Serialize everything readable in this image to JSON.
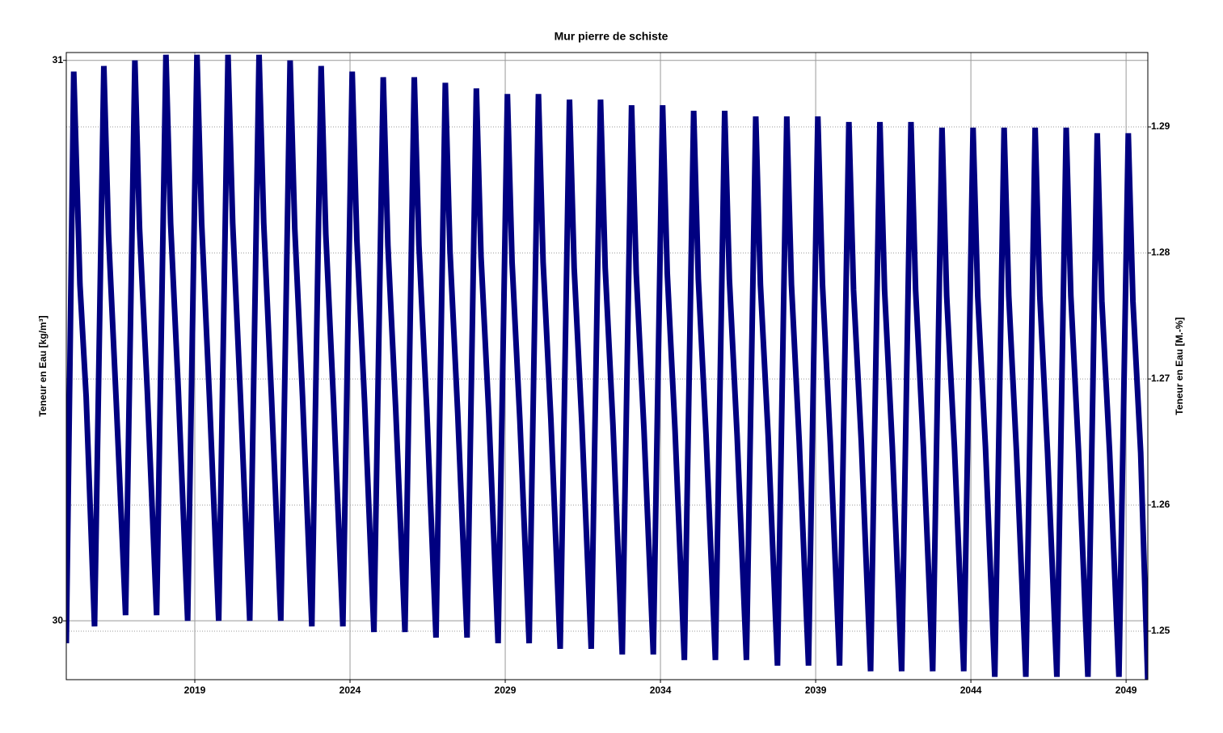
{
  "chart_data": {
    "type": "line",
    "title": "Mur pierre de schiste",
    "y_label": "Teneur en Eau [kg/m³]",
    "y2_label": "Teneur en Eau [M.-%]",
    "color": "#000080",
    "grid": true,
    "xlim": [
      2014.86,
      2049.7
    ],
    "xticks": [
      2019,
      2024,
      2029,
      2034,
      2039,
      2044,
      2049
    ],
    "ylim": [
      29.895,
      31.014
    ],
    "yticks": [
      30,
      31
    ],
    "y2lim": [
      1.24615,
      1.2959
    ],
    "y2ticks": [
      1.25,
      1.26,
      1.27,
      1.28,
      1.29
    ],
    "x": [
      2014.86,
      2015.1,
      2015.3,
      2015.5,
      2015.77,
      2016.07,
      2016.22,
      2016.47,
      2016.77,
      2017.07,
      2017.22,
      2017.47,
      2017.77,
      2018.07,
      2018.22,
      2018.47,
      2018.77,
      2019.07,
      2019.22,
      2019.47,
      2019.77,
      2020.07,
      2020.22,
      2020.47,
      2020.77,
      2021.07,
      2021.22,
      2021.47,
      2021.77,
      2022.07,
      2022.22,
      2022.47,
      2022.77,
      2023.07,
      2023.22,
      2023.47,
      2023.77,
      2024.07,
      2024.22,
      2024.47,
      2024.77,
      2025.07,
      2025.22,
      2025.47,
      2025.77,
      2026.07,
      2026.22,
      2026.47,
      2026.77,
      2027.07,
      2027.22,
      2027.47,
      2027.77,
      2028.07,
      2028.22,
      2028.47,
      2028.77,
      2029.07,
      2029.22,
      2029.47,
      2029.77,
      2030.07,
      2030.22,
      2030.47,
      2030.77,
      2031.07,
      2031.22,
      2031.47,
      2031.77,
      2032.07,
      2032.22,
      2032.47,
      2032.77,
      2033.07,
      2033.22,
      2033.47,
      2033.77,
      2034.07,
      2034.22,
      2034.47,
      2034.77,
      2035.07,
      2035.22,
      2035.47,
      2035.77,
      2036.07,
      2036.22,
      2036.47,
      2036.77,
      2037.07,
      2037.22,
      2037.47,
      2037.77,
      2038.07,
      2038.22,
      2038.47,
      2038.77,
      2039.07,
      2039.22,
      2039.47,
      2039.77,
      2040.07,
      2040.22,
      2040.47,
      2040.77,
      2041.07,
      2041.22,
      2041.47,
      2041.77,
      2042.07,
      2042.22,
      2042.47,
      2042.77,
      2043.07,
      2043.22,
      2043.47,
      2043.77,
      2044.07,
      2044.22,
      2044.47,
      2044.77,
      2045.07,
      2045.22,
      2045.47,
      2045.77,
      2046.07,
      2046.22,
      2046.47,
      2046.77,
      2047.07,
      2047.22,
      2047.47,
      2047.77,
      2048.07,
      2048.22,
      2048.47,
      2048.77,
      2049.07,
      2049.22,
      2049.47,
      2049.7
    ],
    "values": [
      29.96,
      30.98,
      30.6,
      30.4,
      29.99,
      30.99,
      30.69,
      30.39,
      30.01,
      31.0,
      30.7,
      30.41,
      30.01,
      31.01,
      30.71,
      30.41,
      30.0,
      31.01,
      30.71,
      30.4,
      30.0,
      31.01,
      30.71,
      30.4,
      30.0,
      31.01,
      30.71,
      30.4,
      30.0,
      31.0,
      30.7,
      30.4,
      29.99,
      30.99,
      30.69,
      30.39,
      29.99,
      30.98,
      30.68,
      30.39,
      29.98,
      30.97,
      30.67,
      30.38,
      29.98,
      30.97,
      30.67,
      30.38,
      29.97,
      30.96,
      30.66,
      30.37,
      29.97,
      30.95,
      30.65,
      30.37,
      29.96,
      30.94,
      30.64,
      30.36,
      29.96,
      30.94,
      30.64,
      30.36,
      29.95,
      30.93,
      30.63,
      30.35,
      29.95,
      30.93,
      30.63,
      30.35,
      29.94,
      30.92,
      30.62,
      30.34,
      29.94,
      30.92,
      30.62,
      30.34,
      29.93,
      30.91,
      30.61,
      30.33,
      29.93,
      30.91,
      30.61,
      30.33,
      29.93,
      30.9,
      30.6,
      30.33,
      29.92,
      30.9,
      30.6,
      30.32,
      29.92,
      30.9,
      30.6,
      30.32,
      29.92,
      30.89,
      30.59,
      30.32,
      29.91,
      30.89,
      30.59,
      30.31,
      29.91,
      30.89,
      30.59,
      30.31,
      29.91,
      30.88,
      30.58,
      30.31,
      29.91,
      30.88,
      30.58,
      30.31,
      29.9,
      30.88,
      30.58,
      30.3,
      29.9,
      30.88,
      30.58,
      30.3,
      29.9,
      30.88,
      30.58,
      30.3,
      29.9,
      30.87,
      30.57,
      30.3,
      29.9,
      30.87,
      30.57,
      30.3,
      29.89
    ]
  }
}
